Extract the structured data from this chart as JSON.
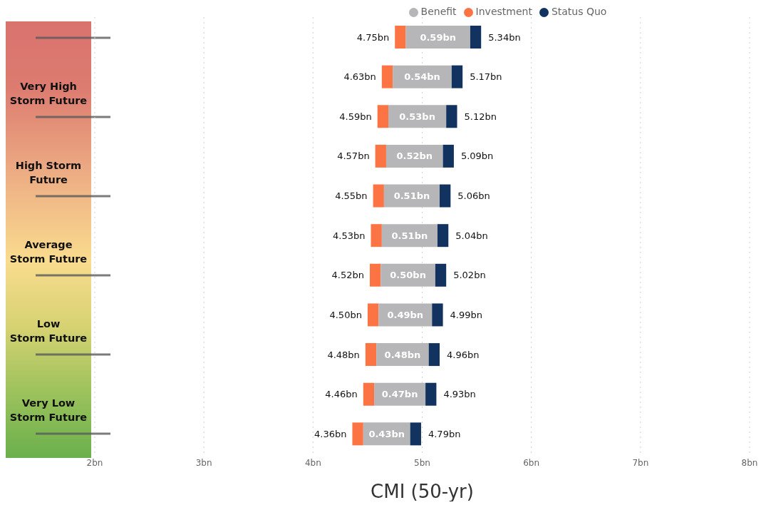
{
  "chart_data": {
    "type": "bar",
    "orientation": "horizontal",
    "xlabel": "CMI (50-yr)",
    "categories": [
      null,
      null,
      null,
      null,
      null,
      null,
      null,
      null,
      null,
      null,
      null
    ],
    "series": [
      {
        "name": "Investment",
        "color": "#fd7444",
        "base": [
          4.75,
          4.63,
          4.59,
          4.57,
          4.55,
          4.53,
          4.52,
          4.5,
          4.48,
          4.46,
          4.36
        ],
        "values": [
          0.1,
          0.1,
          0.1,
          0.1,
          0.1,
          0.1,
          0.1,
          0.1,
          0.1,
          0.1,
          0.1
        ]
      },
      {
        "name": "Benefit",
        "color": "#b6b6b8",
        "base": [
          4.85,
          4.73,
          4.69,
          4.67,
          4.65,
          4.63,
          4.62,
          4.6,
          4.58,
          4.56,
          4.46
        ],
        "values": [
          0.59,
          0.54,
          0.53,
          0.52,
          0.51,
          0.51,
          0.5,
          0.49,
          0.48,
          0.47,
          0.43
        ],
        "value_labels": [
          "0.59bn",
          "0.54bn",
          "0.53bn",
          "0.52bn",
          "0.51bn",
          "0.51bn",
          "0.50bn",
          "0.49bn",
          "0.48bn",
          "0.47bn",
          "0.43bn"
        ]
      },
      {
        "name": "Status Quo",
        "color": "#12335f",
        "base": [
          5.44,
          5.27,
          5.22,
          5.19,
          5.16,
          5.14,
          5.12,
          5.09,
          5.06,
          5.03,
          4.89
        ],
        "values": [
          0.1,
          0.1,
          0.1,
          0.1,
          0.1,
          0.1,
          0.1,
          0.1,
          0.1,
          0.1,
          0.1
        ]
      }
    ],
    "xlim": [
      2,
      8
    ],
    "xticks": [
      {
        "value": 2,
        "label": "2bn"
      },
      {
        "value": 3,
        "label": "3bn"
      },
      {
        "value": 4,
        "label": "4bn"
      },
      {
        "value": 5,
        "label": "5bn"
      },
      {
        "value": 6,
        "label": "6bn"
      },
      {
        "value": 7,
        "label": "7bn"
      },
      {
        "value": 8,
        "label": "8bn"
      }
    ],
    "grid": "x",
    "legend": "top",
    "tick_labels": "x",
    "annotations": [
      "Very High\nStorm Future",
      "High Storm\nFuture",
      "Average\nStorm Future",
      "Low\nStorm Future",
      "Very Low\nStorm Future",
      "4.75bn",
      "5.34bn",
      "4.63bn",
      "5.17bn",
      "4.59bn",
      "5.12bn",
      "4.57bn",
      "5.09bn",
      "4.55bn",
      "5.06bn",
      "4.53bn",
      "5.04bn",
      "4.52bn",
      "5.02bn",
      "4.50bn",
      "4.99bn",
      "4.48bn",
      "4.96bn",
      "4.46bn",
      "4.93bn",
      "4.36bn",
      "4.79bn"
    ]
  }
}
